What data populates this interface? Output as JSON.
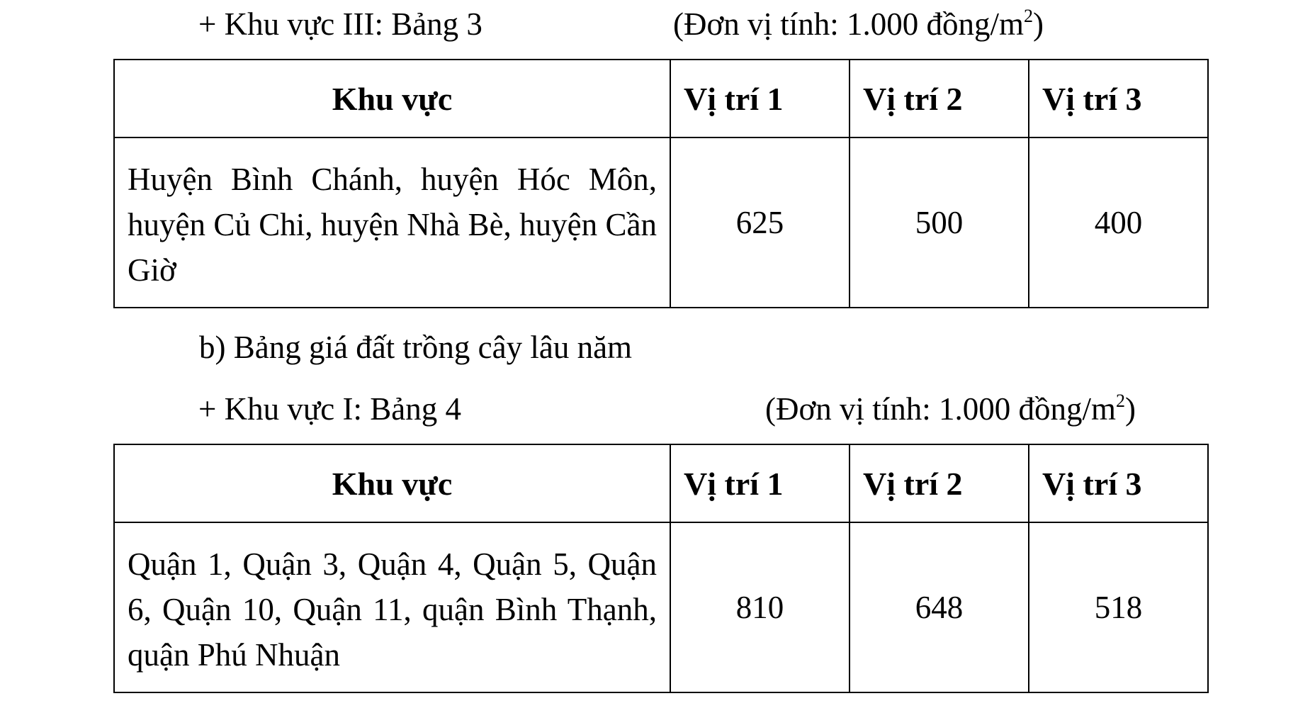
{
  "section3": {
    "heading": "+ Khu vực III: Bảng 3",
    "unit_prefix": "(Đơn vị tính: 1.000 đồng/m",
    "unit_sup": "2",
    "unit_suffix": ")",
    "table": {
      "headers": [
        "Khu vực",
        "Vị trí 1",
        "Vị trí 2",
        "Vị trí 3"
      ],
      "rows": [
        {
          "area": "Huyện Bình Chánh, huyện Hóc Môn, huyện Củ Chi, huyện Nhà Bè, huyện Cần Giờ",
          "values": [
            "625",
            "500",
            "400"
          ]
        }
      ]
    }
  },
  "subsection_b": "b) Bảng giá đất trồng cây lâu năm",
  "section4": {
    "heading": "+ Khu vực I: Bảng 4",
    "unit_prefix": "(Đơn vị tính: 1.000 đồng/m",
    "unit_sup": "2",
    "unit_suffix": ")",
    "table": {
      "headers": [
        "Khu vực",
        "Vị trí 1",
        "Vị trí 2",
        "Vị trí 3"
      ],
      "rows": [
        {
          "area": "Quận 1, Quận 3, Quận 4, Quận 5, Quận 6, Quận 10, Quận 11, quận Bình Thạnh, quận Phú Nhuận",
          "values": [
            "810",
            "648",
            "518"
          ]
        }
      ]
    }
  }
}
